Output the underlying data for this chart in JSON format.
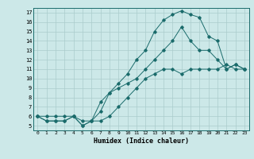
{
  "xlabel": "Humidex (Indice chaleur)",
  "xlim": [
    -0.5,
    23.5
  ],
  "ylim": [
    4.5,
    17.5
  ],
  "xticks": [
    0,
    1,
    2,
    3,
    4,
    5,
    6,
    7,
    8,
    9,
    10,
    11,
    12,
    13,
    14,
    15,
    16,
    17,
    18,
    19,
    20,
    21,
    22,
    23
  ],
  "yticks": [
    5,
    6,
    7,
    8,
    9,
    10,
    11,
    12,
    13,
    14,
    15,
    16,
    17
  ],
  "bg_color": "#cce8e8",
  "grid_color": "#aacccc",
  "line_color": "#1a6b6b",
  "line1_x": [
    0,
    1,
    2,
    3,
    4,
    5,
    6,
    7,
    8,
    9,
    10,
    11,
    12,
    13,
    14,
    15,
    16,
    17,
    18,
    19,
    20,
    21,
    22,
    23
  ],
  "line1_y": [
    6,
    6,
    6,
    6,
    6,
    5.5,
    5.5,
    5.5,
    6,
    7,
    8,
    9,
    10,
    10.5,
    11,
    11,
    10.5,
    11,
    11,
    11,
    11,
    11.5,
    11,
    11
  ],
  "line2_x": [
    0,
    1,
    2,
    3,
    4,
    5,
    6,
    7,
    8,
    9,
    10,
    11,
    12,
    13,
    14,
    15,
    16,
    17,
    18,
    19,
    20,
    21,
    22,
    23
  ],
  "line2_y": [
    6,
    5.5,
    5.5,
    5.5,
    6,
    5,
    5.5,
    6.5,
    8.5,
    9.5,
    10.5,
    12,
    13,
    15,
    16.2,
    16.8,
    17.2,
    16.8,
    16.5,
    14.5,
    14.0,
    11,
    11.5,
    11
  ],
  "line3_x": [
    0,
    1,
    2,
    3,
    4,
    5,
    6,
    7,
    8,
    9,
    10,
    11,
    12,
    13,
    14,
    15,
    16,
    17,
    18,
    19,
    20,
    21,
    22,
    23
  ],
  "line3_y": [
    6,
    5.5,
    5.5,
    5.5,
    6,
    5,
    5.5,
    7.5,
    8.5,
    9,
    9.5,
    10,
    11,
    12,
    13,
    14,
    15.5,
    14.0,
    13,
    13,
    12,
    11,
    11.5,
    11
  ]
}
